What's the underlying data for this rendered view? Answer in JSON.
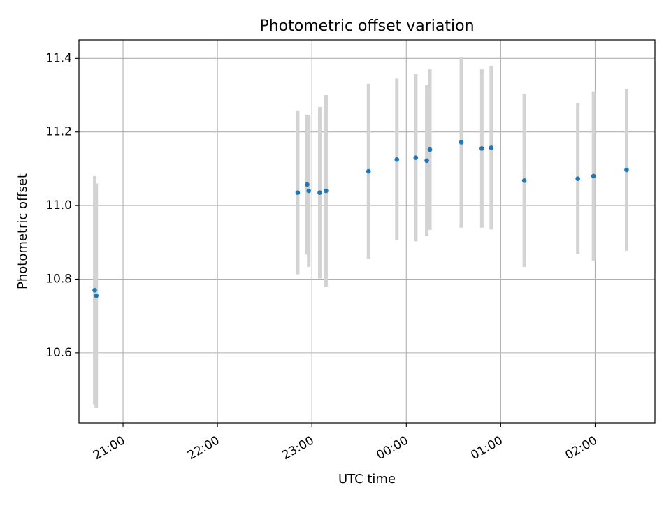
{
  "chart_data": {
    "type": "scatter",
    "title": "Photometric offset variation",
    "xlabel": "UTC time",
    "ylabel": "Photometric offset",
    "x_ticks": [
      "21:00",
      "22:00",
      "23:00",
      "00:00",
      "01:00",
      "02:00"
    ],
    "y_ticks": [
      "10.6",
      "10.8",
      "11.0",
      "11.2",
      "11.4"
    ],
    "ylim": [
      10.41,
      11.45
    ],
    "xlim": [
      "20:32",
      "02:38"
    ],
    "grid": true,
    "colors": {
      "point": "#1f77b4",
      "errorbar": "#d3d3d3",
      "grid": "#b0b0b0"
    },
    "points": [
      {
        "time": "20:42",
        "y": 10.77,
        "err": 0.31
      },
      {
        "time": "20:43",
        "y": 10.755,
        "err": 0.305
      },
      {
        "time": "22:51",
        "y": 11.035,
        "err": 0.222
      },
      {
        "time": "22:57",
        "y": 11.057,
        "err": 0.19
      },
      {
        "time": "22:58",
        "y": 11.04,
        "err": 0.207
      },
      {
        "time": "23:05",
        "y": 11.035,
        "err": 0.233
      },
      {
        "time": "23:09",
        "y": 11.04,
        "err": 0.26
      },
      {
        "time": "23:36",
        "y": 11.093,
        "err": 0.238
      },
      {
        "time": "23:54",
        "y": 11.125,
        "err": 0.22
      },
      {
        "time": "00:06",
        "y": 11.13,
        "err": 0.227
      },
      {
        "time": "00:13",
        "y": 11.122,
        "err": 0.205
      },
      {
        "time": "00:15",
        "y": 11.152,
        "err": 0.218
      },
      {
        "time": "00:35",
        "y": 11.172,
        "err": 0.232
      },
      {
        "time": "00:48",
        "y": 11.155,
        "err": 0.215
      },
      {
        "time": "00:54",
        "y": 11.157,
        "err": 0.222
      },
      {
        "time": "01:15",
        "y": 11.068,
        "err": 0.235
      },
      {
        "time": "01:49",
        "y": 11.073,
        "err": 0.205
      },
      {
        "time": "01:59",
        "y": 11.08,
        "err": 0.23
      },
      {
        "time": "02:20",
        "y": 11.097,
        "err": 0.22
      }
    ]
  }
}
